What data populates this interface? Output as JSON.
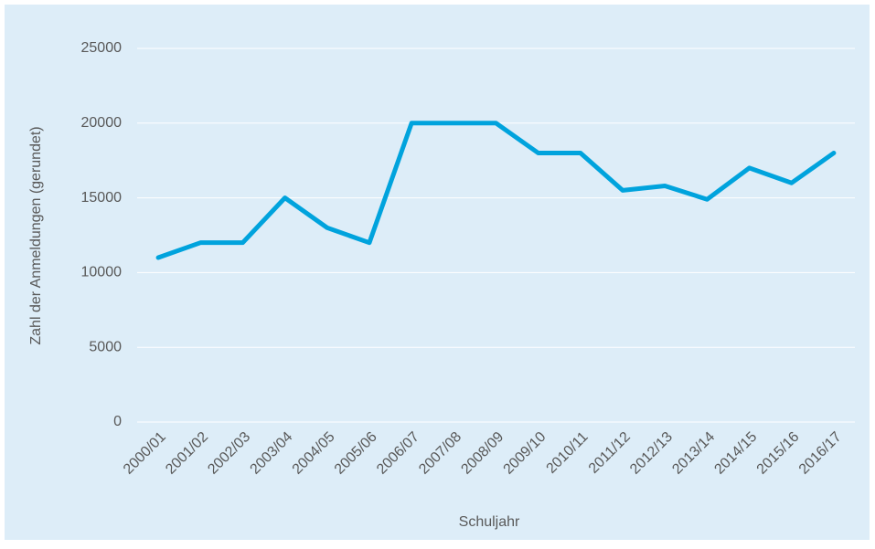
{
  "chart_data": {
    "type": "line",
    "x_label": "Schuljahr",
    "y_label": "Zahl der Anmeldungen (gerundet)",
    "categories": [
      "2000/01",
      "2001/02",
      "2002/03",
      "2003/04",
      "2004/05",
      "2005/06",
      "2006/07",
      "2007/08",
      "2008/09",
      "2009/10",
      "2010/11",
      "2011/12",
      "2012/13",
      "2013/14",
      "2014/15",
      "2015/16",
      "2016/17"
    ],
    "values": [
      11000,
      12000,
      12000,
      15000,
      13000,
      12000,
      20000,
      20000,
      20000,
      18000,
      18000,
      15500,
      15800,
      14900,
      17000,
      16000,
      18000
    ],
    "color": "#00a3dd",
    "ylim": [
      0,
      25000
    ],
    "yticks": [
      0,
      5000,
      10000,
      15000,
      20000,
      25000
    ],
    "grid": true
  }
}
